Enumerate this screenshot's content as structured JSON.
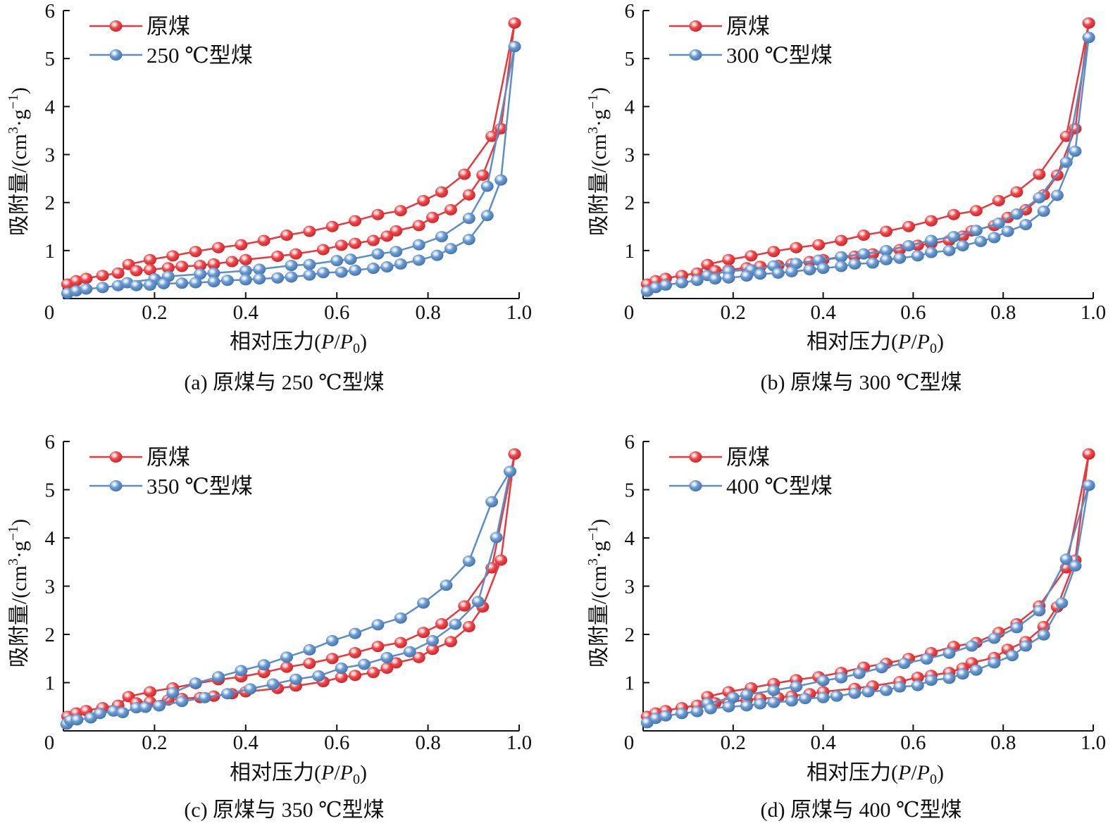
{
  "figure": {
    "colors": {
      "raw": "#E8383D",
      "modified": "#5B8EC7",
      "axis": "#111111"
    }
  },
  "chart_data": [
    {
      "id": "a",
      "type": "line",
      "caption": "(a)  原煤与 250 ℃型煤",
      "xlabel": "相对压力(P/P0)",
      "xlabel_parts": {
        "prefix": "相对压力(",
        "P": "P",
        "slash": "/",
        "P0": "P",
        "sub": "0",
        "suffix": ")"
      },
      "ylabel": "吸附量/(cm3·g-1)",
      "ylabel_parts": {
        "prefix": "吸附量/(cm",
        "sup1": "3",
        "mid": "·g",
        "sup2": "−1",
        "suffix": ")"
      },
      "xlim": [
        0,
        1.0
      ],
      "ylim": [
        0,
        6
      ],
      "xticks": [
        "0",
        "0.2",
        "0.4",
        "0.6",
        "0.8",
        "1.0"
      ],
      "yticks": [
        "1",
        "2",
        "3",
        "4",
        "5",
        "6"
      ],
      "grid": false,
      "legend": {
        "position": "top-left",
        "entries": [
          "原煤",
          "250 ℃型煤"
        ]
      },
      "series": [
        {
          "name": "原煤",
          "color_key": "raw",
          "branch": "adsorption",
          "x": [
            0.009,
            0.028,
            0.05,
            0.086,
            0.12,
            0.143,
            0.19,
            0.24,
            0.29,
            0.34,
            0.39,
            0.44,
            0.49,
            0.54,
            0.59,
            0.64,
            0.69,
            0.74,
            0.79,
            0.83,
            0.88,
            0.94,
            0.99
          ],
          "y": [
            0.3,
            0.37,
            0.42,
            0.48,
            0.53,
            0.71,
            0.81,
            0.89,
            0.98,
            1.06,
            1.12,
            1.21,
            1.32,
            1.4,
            1.5,
            1.62,
            1.75,
            1.83,
            2.04,
            2.22,
            2.59,
            3.38,
            5.74
          ]
        },
        {
          "name": "原煤",
          "color_key": "raw",
          "branch": "desorption",
          "x": [
            0.99,
            0.96,
            0.92,
            0.89,
            0.85,
            0.81,
            0.78,
            0.73,
            0.71,
            0.68,
            0.64,
            0.61,
            0.57,
            0.51,
            0.47,
            0.4,
            0.37,
            0.33,
            0.3,
            0.26,
            0.23,
            0.19,
            0.16
          ],
          "y": [
            5.74,
            3.54,
            2.57,
            2.16,
            1.85,
            1.69,
            1.52,
            1.41,
            1.3,
            1.21,
            1.15,
            1.11,
            1.02,
            0.93,
            0.88,
            0.81,
            0.77,
            0.72,
            0.69,
            0.67,
            0.64,
            0.6,
            0.58
          ]
        },
        {
          "name": "250 ℃型煤",
          "color_key": "modified",
          "branch": "adsorption",
          "x": [
            0.009,
            0.028,
            0.05,
            0.086,
            0.12,
            0.14,
            0.2,
            0.23,
            0.3,
            0.33,
            0.4,
            0.43,
            0.5,
            0.54,
            0.6,
            0.63,
            0.69,
            0.73,
            0.78,
            0.83,
            0.89,
            0.93,
            0.99
          ],
          "y": [
            0.11,
            0.16,
            0.2,
            0.23,
            0.27,
            0.33,
            0.41,
            0.46,
            0.51,
            0.53,
            0.58,
            0.61,
            0.69,
            0.71,
            0.79,
            0.82,
            0.93,
            0.98,
            1.12,
            1.29,
            1.67,
            2.34,
            5.25
          ]
        },
        {
          "name": "250 ℃型煤",
          "color_key": "modified",
          "branch": "desorption",
          "x": [
            0.99,
            0.96,
            0.93,
            0.89,
            0.85,
            0.82,
            0.78,
            0.74,
            0.71,
            0.68,
            0.64,
            0.61,
            0.57,
            0.54,
            0.5,
            0.47,
            0.43,
            0.4,
            0.36,
            0.33,
            0.29,
            0.26,
            0.22,
            0.19,
            0.16
          ],
          "y": [
            5.25,
            2.47,
            1.73,
            1.23,
            1.04,
            0.9,
            0.8,
            0.72,
            0.66,
            0.63,
            0.59,
            0.55,
            0.54,
            0.49,
            0.45,
            0.43,
            0.41,
            0.39,
            0.38,
            0.35,
            0.33,
            0.32,
            0.31,
            0.28,
            0.27
          ]
        }
      ]
    },
    {
      "id": "b",
      "type": "line",
      "caption": "(b)  原煤与 300 ℃型煤",
      "xlabel": "相对压力(P/P0)",
      "xlabel_parts": {
        "prefix": "相对压力(",
        "P": "P",
        "slash": "/",
        "P0": "P",
        "sub": "0",
        "suffix": ")"
      },
      "ylabel": "吸附量/(cm3·g-1)",
      "ylabel_parts": {
        "prefix": "吸附量/(cm",
        "sup1": "3",
        "mid": "·g",
        "sup2": "−1",
        "suffix": ")"
      },
      "xlim": [
        0,
        1.0
      ],
      "ylim": [
        0,
        6
      ],
      "xticks": [
        "0",
        "0.2",
        "0.4",
        "0.6",
        "0.8",
        "1.0"
      ],
      "yticks": [
        "1",
        "2",
        "3",
        "4",
        "5",
        "6"
      ],
      "grid": false,
      "legend": {
        "position": "top-left",
        "entries": [
          "原煤",
          "300 ℃型煤"
        ]
      },
      "series": [
        {
          "name": "原煤",
          "color_key": "raw",
          "branch": "adsorption",
          "x": [
            0.009,
            0.028,
            0.05,
            0.086,
            0.12,
            0.143,
            0.19,
            0.24,
            0.29,
            0.34,
            0.39,
            0.44,
            0.49,
            0.54,
            0.59,
            0.64,
            0.69,
            0.74,
            0.79,
            0.83,
            0.88,
            0.94,
            0.99
          ],
          "y": [
            0.3,
            0.37,
            0.42,
            0.48,
            0.53,
            0.71,
            0.81,
            0.89,
            0.98,
            1.06,
            1.12,
            1.21,
            1.32,
            1.4,
            1.5,
            1.62,
            1.75,
            1.83,
            2.04,
            2.22,
            2.59,
            3.38,
            5.74
          ]
        },
        {
          "name": "原煤",
          "color_key": "raw",
          "branch": "desorption",
          "x": [
            0.99,
            0.96,
            0.92,
            0.89,
            0.85,
            0.81,
            0.78,
            0.73,
            0.71,
            0.68,
            0.64,
            0.61,
            0.57,
            0.51,
            0.47,
            0.4,
            0.37,
            0.33,
            0.3,
            0.26,
            0.23,
            0.19,
            0.16
          ],
          "y": [
            5.74,
            3.54,
            2.57,
            2.16,
            1.85,
            1.69,
            1.52,
            1.41,
            1.3,
            1.21,
            1.15,
            1.11,
            1.02,
            0.93,
            0.88,
            0.81,
            0.77,
            0.72,
            0.69,
            0.67,
            0.64,
            0.6,
            0.58
          ]
        },
        {
          "name": "300 ℃型煤",
          "color_key": "modified",
          "branch": "adsorption",
          "x": [
            0.009,
            0.028,
            0.05,
            0.086,
            0.12,
            0.143,
            0.19,
            0.24,
            0.29,
            0.34,
            0.39,
            0.44,
            0.49,
            0.54,
            0.59,
            0.64,
            0.69,
            0.74,
            0.79,
            0.83,
            0.88,
            0.94,
            0.99
          ],
          "y": [
            0.15,
            0.23,
            0.28,
            0.33,
            0.38,
            0.48,
            0.57,
            0.6,
            0.68,
            0.73,
            0.8,
            0.87,
            0.93,
            1.0,
            1.1,
            1.21,
            1.29,
            1.42,
            1.57,
            1.76,
            2.1,
            2.84,
            5.44
          ]
        },
        {
          "name": "300 ℃型煤",
          "color_key": "modified",
          "branch": "desorption",
          "x": [
            0.99,
            0.96,
            0.92,
            0.89,
            0.85,
            0.81,
            0.78,
            0.75,
            0.71,
            0.68,
            0.64,
            0.61,
            0.57,
            0.54,
            0.51,
            0.47,
            0.44,
            0.4,
            0.37,
            0.33,
            0.3,
            0.26,
            0.23,
            0.19,
            0.16
          ],
          "y": [
            5.44,
            3.07,
            2.15,
            1.82,
            1.54,
            1.4,
            1.27,
            1.19,
            1.1,
            1.0,
            0.96,
            0.89,
            0.84,
            0.81,
            0.74,
            0.72,
            0.67,
            0.63,
            0.6,
            0.56,
            0.53,
            0.51,
            0.47,
            0.43,
            0.41
          ]
        }
      ]
    },
    {
      "id": "c",
      "type": "line",
      "caption": "(c)  原煤与 350 ℃型煤",
      "xlabel": "相对压力(P/P0)",
      "xlabel_parts": {
        "prefix": "相对压力(",
        "P": "P",
        "slash": "/",
        "P0": "P",
        "sub": "0",
        "suffix": ")"
      },
      "ylabel": "吸附量/(cm3·g-1)",
      "ylabel_parts": {
        "prefix": "吸附量/(cm",
        "sup1": "3",
        "mid": "·g",
        "sup2": "−1",
        "suffix": ")"
      },
      "xlim": [
        0,
        1.0
      ],
      "ylim": [
        0,
        6
      ],
      "xticks": [
        "0",
        "0.2",
        "0.4",
        "0.6",
        "0.8",
        "1.0"
      ],
      "yticks": [
        "1",
        "2",
        "3",
        "4",
        "5",
        "6"
      ],
      "grid": false,
      "legend": {
        "position": "top-left",
        "entries": [
          "原煤",
          "350 ℃型煤"
        ]
      },
      "series": [
        {
          "name": "原煤",
          "color_key": "raw",
          "branch": "adsorption",
          "x": [
            0.009,
            0.028,
            0.05,
            0.086,
            0.12,
            0.143,
            0.19,
            0.24,
            0.29,
            0.34,
            0.39,
            0.44,
            0.49,
            0.54,
            0.59,
            0.64,
            0.69,
            0.74,
            0.79,
            0.83,
            0.88,
            0.94,
            0.99
          ],
          "y": [
            0.3,
            0.37,
            0.42,
            0.48,
            0.53,
            0.71,
            0.81,
            0.89,
            0.98,
            1.06,
            1.12,
            1.21,
            1.32,
            1.4,
            1.5,
            1.62,
            1.75,
            1.83,
            2.04,
            2.22,
            2.59,
            3.38,
            5.74
          ]
        },
        {
          "name": "原煤",
          "color_key": "raw",
          "branch": "desorption",
          "x": [
            0.99,
            0.96,
            0.92,
            0.89,
            0.85,
            0.81,
            0.78,
            0.73,
            0.71,
            0.68,
            0.64,
            0.61,
            0.57,
            0.51,
            0.47,
            0.4,
            0.37,
            0.33,
            0.3,
            0.26,
            0.23,
            0.19,
            0.16
          ],
          "y": [
            5.74,
            3.54,
            2.57,
            2.16,
            1.85,
            1.69,
            1.52,
            1.41,
            1.3,
            1.21,
            1.15,
            1.11,
            1.02,
            0.93,
            0.88,
            0.81,
            0.77,
            0.72,
            0.69,
            0.67,
            0.64,
            0.6,
            0.58
          ]
        },
        {
          "name": "350 ℃型煤",
          "color_key": "modified",
          "branch": "adsorption",
          "x": [
            0.007,
            0.015,
            0.03,
            0.06,
            0.08,
            0.11,
            0.13,
            0.16,
            0.18,
            0.21,
            0.24,
            0.29,
            0.34,
            0.39,
            0.44,
            0.49,
            0.54,
            0.59,
            0.64,
            0.69,
            0.74,
            0.79,
            0.84,
            0.89,
            0.94,
            0.98
          ],
          "y": [
            0.14,
            0.22,
            0.23,
            0.27,
            0.36,
            0.41,
            0.38,
            0.48,
            0.49,
            0.52,
            0.79,
            0.99,
            1.12,
            1.25,
            1.37,
            1.53,
            1.68,
            1.87,
            2.02,
            2.2,
            2.34,
            2.65,
            3.02,
            3.52,
            4.75,
            5.38
          ]
        },
        {
          "name": "350 ℃型煤",
          "color_key": "modified",
          "branch": "desorption",
          "x": [
            0.98,
            0.95,
            0.91,
            0.86,
            0.81,
            0.76,
            0.71,
            0.66,
            0.61,
            0.56,
            0.51,
            0.46,
            0.41,
            0.36,
            0.31,
            0.26,
            0.21
          ],
          "y": [
            5.38,
            4.01,
            2.68,
            2.21,
            1.87,
            1.64,
            1.52,
            1.38,
            1.3,
            1.14,
            1.07,
            0.97,
            0.87,
            0.77,
            0.69,
            0.61,
            0.52
          ]
        }
      ]
    },
    {
      "id": "d",
      "type": "line",
      "caption": "(d)  原煤与 400 ℃型煤",
      "xlabel": "相对压力(P/P0)",
      "xlabel_parts": {
        "prefix": "相对压力(",
        "P": "P",
        "slash": "/",
        "P0": "P",
        "sub": "0",
        "suffix": ")"
      },
      "ylabel": "吸附量/(cm3·g-1)",
      "ylabel_parts": {
        "prefix": "吸附量/(cm",
        "sup1": "3",
        "mid": "·g",
        "sup2": "−1",
        "suffix": ")"
      },
      "xlim": [
        0,
        1.0
      ],
      "ylim": [
        0,
        6
      ],
      "xticks": [
        "0",
        "0.2",
        "0.4",
        "0.6",
        "0.8",
        "1.0"
      ],
      "yticks": [
        "1",
        "2",
        "3",
        "4",
        "5",
        "6"
      ],
      "grid": false,
      "legend": {
        "position": "top-left",
        "entries": [
          "原煤",
          "400 ℃型煤"
        ]
      },
      "series": [
        {
          "name": "原煤",
          "color_key": "raw",
          "branch": "adsorption",
          "x": [
            0.009,
            0.028,
            0.05,
            0.086,
            0.12,
            0.143,
            0.19,
            0.24,
            0.29,
            0.34,
            0.39,
            0.44,
            0.49,
            0.54,
            0.59,
            0.64,
            0.69,
            0.74,
            0.79,
            0.83,
            0.88,
            0.94,
            0.99
          ],
          "y": [
            0.3,
            0.37,
            0.42,
            0.48,
            0.53,
            0.71,
            0.81,
            0.89,
            0.98,
            1.06,
            1.12,
            1.21,
            1.32,
            1.4,
            1.5,
            1.62,
            1.75,
            1.83,
            2.04,
            2.22,
            2.59,
            3.38,
            5.74
          ]
        },
        {
          "name": "原煤",
          "color_key": "raw",
          "branch": "desorption",
          "x": [
            0.99,
            0.96,
            0.92,
            0.89,
            0.85,
            0.81,
            0.78,
            0.73,
            0.71,
            0.68,
            0.64,
            0.61,
            0.57,
            0.51,
            0.47,
            0.4,
            0.37,
            0.33,
            0.3,
            0.26,
            0.23,
            0.19,
            0.16
          ],
          "y": [
            5.74,
            3.54,
            2.57,
            2.16,
            1.85,
            1.69,
            1.52,
            1.41,
            1.3,
            1.21,
            1.15,
            1.11,
            1.02,
            0.93,
            0.88,
            0.81,
            0.77,
            0.72,
            0.69,
            0.67,
            0.64,
            0.6,
            0.58
          ]
        },
        {
          "name": "400 ℃型煤",
          "color_key": "modified",
          "branch": "adsorption",
          "x": [
            0.009,
            0.028,
            0.05,
            0.086,
            0.12,
            0.143,
            0.2,
            0.23,
            0.29,
            0.34,
            0.4,
            0.44,
            0.48,
            0.53,
            0.58,
            0.63,
            0.68,
            0.73,
            0.78,
            0.83,
            0.88,
            0.94,
            0.99
          ],
          "y": [
            0.17,
            0.26,
            0.31,
            0.36,
            0.4,
            0.57,
            0.69,
            0.75,
            0.84,
            0.92,
            1.04,
            1.1,
            1.19,
            1.31,
            1.4,
            1.49,
            1.61,
            1.76,
            1.92,
            2.14,
            2.49,
            3.56,
            5.09
          ]
        },
        {
          "name": "400 ℃型煤",
          "color_key": "modified",
          "branch": "desorption",
          "x": [
            0.99,
            0.96,
            0.93,
            0.89,
            0.85,
            0.82,
            0.78,
            0.74,
            0.71,
            0.68,
            0.64,
            0.61,
            0.57,
            0.54,
            0.5,
            0.47,
            0.43,
            0.4,
            0.36,
            0.33,
            0.29,
            0.26,
            0.23,
            0.19,
            0.15
          ],
          "y": [
            5.09,
            3.42,
            2.65,
            1.99,
            1.76,
            1.56,
            1.41,
            1.26,
            1.18,
            1.09,
            1.05,
            0.94,
            0.91,
            0.84,
            0.81,
            0.78,
            0.72,
            0.69,
            0.67,
            0.62,
            0.59,
            0.56,
            0.52,
            0.5,
            0.46
          ]
        }
      ]
    }
  ]
}
